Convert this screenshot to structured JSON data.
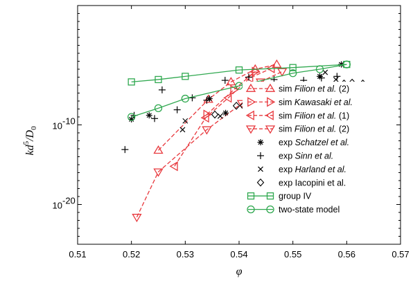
{
  "chart_data": {
    "type": "scatter",
    "xlabel": "φ",
    "ylabel_parts": {
      "base": "kd",
      "sup": "5",
      "mid": "/D",
      "sub": "0"
    },
    "xlim": [
      0.51,
      0.57
    ],
    "ylim_log10": [
      -25,
      5
    ],
    "xticks": [
      0.51,
      0.52,
      0.53,
      0.54,
      0.55,
      0.56,
      0.57
    ],
    "xtick_labels": [
      "0.51",
      "0.52",
      "0.53",
      "0.54",
      "0.55",
      "0.56",
      "0.57"
    ],
    "yticks_log10": [
      -10,
      -20
    ],
    "ytick_labels": [
      {
        "base": "10",
        "exp": "-10"
      },
      {
        "base": "10",
        "exp": "-20"
      }
    ],
    "series": [
      {
        "name": "sim Filion et al. (2)",
        "legend_prefix": "sim ",
        "legend_italic": "Filion et al.",
        "legend_suffix": " (2)",
        "marker": "tri-up",
        "color": "#e8383d",
        "line": "dashed",
        "points": [
          [
            0.525,
            -13.2
          ],
          [
            0.5343,
            -6.8
          ],
          [
            0.5385,
            -4.6
          ],
          [
            0.543,
            -3.0
          ],
          [
            0.547,
            -2.4
          ]
        ]
      },
      {
        "name": "sim Kawasaki et al.",
        "legend_prefix": "sim ",
        "legend_italic": "Kawasaki et al.",
        "legend_suffix": "",
        "marker": "tri-right",
        "color": "#e8383d",
        "line": "dashed",
        "points": [
          [
            0.534,
            -8.7
          ],
          [
            0.539,
            -5.6
          ],
          [
            0.543,
            -3.3
          ]
        ]
      },
      {
        "name": "sim Filion et al. (1)",
        "legend_prefix": "sim ",
        "legend_italic": "Filion et al.",
        "legend_suffix": " (1)",
        "marker": "tri-left",
        "color": "#e8383d",
        "line": "dashed",
        "points": [
          [
            0.528,
            -15.2
          ],
          [
            0.5338,
            -9.1
          ],
          [
            0.538,
            -6.6
          ],
          [
            0.542,
            -4.1
          ],
          [
            0.546,
            -2.9
          ]
        ]
      },
      {
        "name": "sim Filion et al. (2)",
        "legend_prefix": "sim ",
        "legend_italic": "Filion et al.",
        "legend_suffix": " (2)",
        "marker": "tri-down",
        "color": "#e8383d",
        "line": "dashed",
        "points": [
          [
            0.521,
            -21.6
          ],
          [
            0.525,
            -15.9
          ],
          [
            0.534,
            -10.6
          ],
          [
            0.5405,
            -7.3
          ],
          [
            0.544,
            -4.6
          ],
          [
            0.548,
            -3.3
          ]
        ]
      },
      {
        "name": "exp Schatzel et al.",
        "legend_prefix": "exp ",
        "legend_italic": "Schatzel et al.",
        "legend_suffix": "",
        "marker": "asterisk",
        "color": "#000000",
        "line": "none",
        "points": [
          [
            0.52,
            -9.3
          ],
          [
            0.5233,
            -8.8
          ],
          [
            0.5345,
            -6.7
          ],
          [
            0.5375,
            -8.5
          ],
          [
            0.544,
            -5.8
          ],
          [
            0.555,
            -3.9
          ],
          [
            0.559,
            -2.4
          ]
        ]
      },
      {
        "name": "exp Sinn et al.",
        "legend_prefix": "exp ",
        "legend_italic": "Sinn et al.",
        "legend_suffix": "",
        "marker": "plus",
        "color": "#000000",
        "line": "none",
        "points": [
          [
            0.5188,
            -13.1
          ],
          [
            0.5205,
            -8.8
          ],
          [
            0.5243,
            -9.2
          ],
          [
            0.5257,
            -5.6
          ],
          [
            0.5285,
            -8.1
          ],
          [
            0.5313,
            -6.6
          ],
          [
            0.534,
            -6.9
          ],
          [
            0.5374,
            -4.4
          ],
          [
            0.5418,
            -4.0
          ],
          [
            0.5465,
            -4.3
          ],
          [
            0.552,
            -4.4
          ],
          [
            0.5553,
            -4.1
          ],
          [
            0.5582,
            -3.9
          ]
        ]
      },
      {
        "name": "exp Harland et al.",
        "legend_prefix": "exp ",
        "legend_italic": "Harland et al.",
        "legend_suffix": "",
        "marker": "x",
        "color": "#000000",
        "line": "none",
        "points": [
          [
            0.5295,
            -10.6
          ],
          [
            0.53,
            -9.5
          ],
          [
            0.5365,
            -8.9
          ],
          [
            0.5465,
            -7.3
          ],
          [
            0.548,
            -6.2
          ],
          [
            0.5505,
            -5.6
          ],
          [
            0.5525,
            -5.2
          ],
          [
            0.553,
            -5.6
          ],
          [
            0.556,
            -3.4
          ],
          [
            0.558,
            -4.3
          ]
        ]
      },
      {
        "name": "exp Iacopini et al.",
        "legend_prefix": "exp ",
        "legend_italic": "",
        "legend_suffix": "",
        "legend_plain": "exp Iacopini et al.",
        "marker": "diamond",
        "color": "#000000",
        "line": "none",
        "points": [
          [
            0.5355,
            -8.7
          ],
          [
            0.5395,
            -7.6
          ],
          [
            0.5408,
            -7.6
          ],
          [
            0.5465,
            -6.9
          ],
          [
            0.5475,
            -6.7
          ],
          [
            0.55,
            -6.4
          ],
          [
            0.551,
            -6.2
          ],
          [
            0.5555,
            -5.4
          ],
          [
            0.5575,
            -5.4
          ],
          [
            0.5595,
            -4.8
          ],
          [
            0.561,
            -4.7
          ],
          [
            0.563,
            -4.8
          ]
        ]
      },
      {
        "name": "group IV",
        "legend_prefix": "",
        "legend_italic": "",
        "legend_suffix": "",
        "legend_plain": "group IV",
        "marker": "square",
        "color": "#2fa84f",
        "line": "solid",
        "points": [
          [
            0.52,
            -4.6
          ],
          [
            0.525,
            -4.3
          ],
          [
            0.53,
            -3.9
          ],
          [
            0.54,
            -3.1
          ],
          [
            0.55,
            -2.8
          ],
          [
            0.56,
            -2.4
          ]
        ]
      },
      {
        "name": "two-state model",
        "legend_prefix": "",
        "legend_italic": "",
        "legend_suffix": "",
        "legend_plain": "two-state model",
        "marker": "circle",
        "color": "#2fa84f",
        "line": "solid",
        "points": [
          [
            0.52,
            -9.0
          ],
          [
            0.525,
            -7.9
          ],
          [
            0.53,
            -6.7
          ],
          [
            0.54,
            -5.1
          ],
          [
            0.55,
            -3.5
          ],
          [
            0.555,
            -3.0
          ],
          [
            0.56,
            -2.4
          ]
        ]
      }
    ],
    "legend_placement": "lower-right",
    "grid": false
  }
}
